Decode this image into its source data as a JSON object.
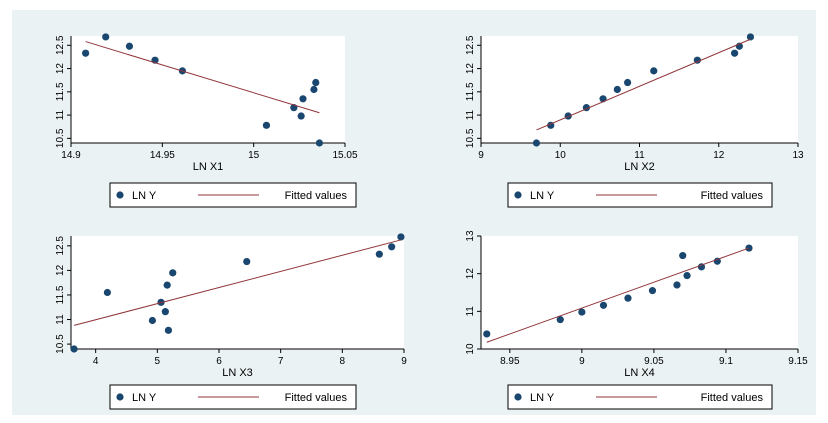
{
  "colors": {
    "background": "#eaf2f3",
    "plot_bg": "#ffffff",
    "point": "#1a476f",
    "line": "#90353b"
  },
  "chart_data": [
    {
      "type": "scatter",
      "xlabel": "LN X1",
      "ylabel": "",
      "xlim": [
        14.9,
        15.05
      ],
      "ylim": [
        10.4,
        12.7
      ],
      "xticks": [
        14.9,
        14.95,
        15,
        15.05
      ],
      "yticks": [
        10.5,
        11,
        11.5,
        12,
        12.5
      ],
      "xtick_labels": [
        "14.9",
        "14.95",
        "15",
        "15.05"
      ],
      "ytick_labels": [
        "10.5",
        "11",
        "11.5",
        "12",
        "12.5"
      ],
      "series": [
        {
          "name": "LN Y",
          "type": "scatter",
          "x": [
            14.908,
            14.919,
            14.932,
            14.946,
            14.961,
            15.007,
            15.022,
            15.026,
            15.027,
            15.033,
            15.034,
            15.036
          ],
          "y": [
            12.33,
            12.68,
            12.48,
            12.18,
            11.95,
            10.78,
            11.16,
            10.98,
            11.35,
            11.55,
            11.7,
            10.4
          ]
        },
        {
          "name": "Fitted values",
          "type": "line",
          "x": [
            14.908,
            15.036
          ],
          "y": [
            12.58,
            11.05
          ]
        }
      ],
      "legend": [
        "LN Y",
        "Fitted values"
      ]
    },
    {
      "type": "scatter",
      "xlabel": "LN X2",
      "ylabel": "",
      "xlim": [
        9,
        13
      ],
      "ylim": [
        10.4,
        12.7
      ],
      "xticks": [
        9,
        10,
        11,
        12,
        13
      ],
      "yticks": [
        10.5,
        11,
        11.5,
        12,
        12.5
      ],
      "xtick_labels": [
        "9",
        "10",
        "11",
        "12",
        "13"
      ],
      "ytick_labels": [
        "10.5",
        "11",
        "11.5",
        "12",
        "12.5"
      ],
      "series": [
        {
          "name": "LN Y",
          "type": "scatter",
          "x": [
            9.7,
            9.88,
            10.1,
            10.33,
            10.54,
            10.72,
            10.85,
            11.18,
            11.73,
            12.2,
            12.26,
            12.4
          ],
          "y": [
            10.4,
            10.78,
            10.98,
            11.16,
            11.35,
            11.55,
            11.7,
            11.95,
            12.18,
            12.33,
            12.48,
            12.68
          ]
        },
        {
          "name": "Fitted values",
          "type": "line",
          "x": [
            9.7,
            12.4
          ],
          "y": [
            10.68,
            12.63
          ]
        }
      ],
      "legend": [
        "LN Y",
        "Fitted values"
      ]
    },
    {
      "type": "scatter",
      "xlabel": "LN X3",
      "ylabel": "",
      "xlim": [
        3.6,
        9
      ],
      "ylim": [
        10.4,
        12.7
      ],
      "xticks": [
        4,
        5,
        6,
        7,
        8,
        9
      ],
      "yticks": [
        10.5,
        11,
        11.5,
        12,
        12.5
      ],
      "xtick_labels": [
        "4",
        "5",
        "6",
        "7",
        "8",
        "9"
      ],
      "ytick_labels": [
        "10.5",
        "11",
        "11.5",
        "12",
        "12.5"
      ],
      "series": [
        {
          "name": "LN Y",
          "type": "scatter",
          "x": [
            3.65,
            4.19,
            4.92,
            5.06,
            5.13,
            5.16,
            5.18,
            5.25,
            6.45,
            8.6,
            8.8,
            8.95
          ],
          "y": [
            10.4,
            11.55,
            10.98,
            11.35,
            11.16,
            11.7,
            10.78,
            11.95,
            12.18,
            12.33,
            12.48,
            12.68
          ]
        },
        {
          "name": "Fitted values",
          "type": "line",
          "x": [
            3.65,
            8.95
          ],
          "y": [
            10.88,
            12.62
          ]
        }
      ],
      "legend": [
        "LN Y",
        "Fitted values"
      ]
    },
    {
      "type": "scatter",
      "xlabel": "LN X4",
      "ylabel": "",
      "xlim": [
        8.93,
        9.15
      ],
      "ylim": [
        10,
        13
      ],
      "xticks": [
        8.95,
        9,
        9.05,
        9.1,
        9.15
      ],
      "yticks": [
        10,
        11,
        12,
        13
      ],
      "xtick_labels": [
        "8.95",
        "9",
        "9.05",
        "9.1",
        "9.15"
      ],
      "ytick_labels": [
        "10",
        "11",
        "12",
        "13"
      ],
      "series": [
        {
          "name": "LN Y",
          "type": "scatter",
          "x": [
            8.934,
            8.985,
            9.0,
            9.015,
            9.032,
            9.049,
            9.066,
            9.07,
            9.073,
            9.083,
            9.094,
            9.116
          ],
          "y": [
            10.4,
            10.78,
            10.98,
            11.16,
            11.35,
            11.55,
            11.7,
            12.48,
            11.95,
            12.18,
            12.33,
            12.68
          ]
        },
        {
          "name": "Fitted values",
          "type": "line",
          "x": [
            8.934,
            9.116
          ],
          "y": [
            10.18,
            12.68
          ]
        }
      ],
      "legend": [
        "LN Y",
        "Fitted values"
      ]
    }
  ]
}
